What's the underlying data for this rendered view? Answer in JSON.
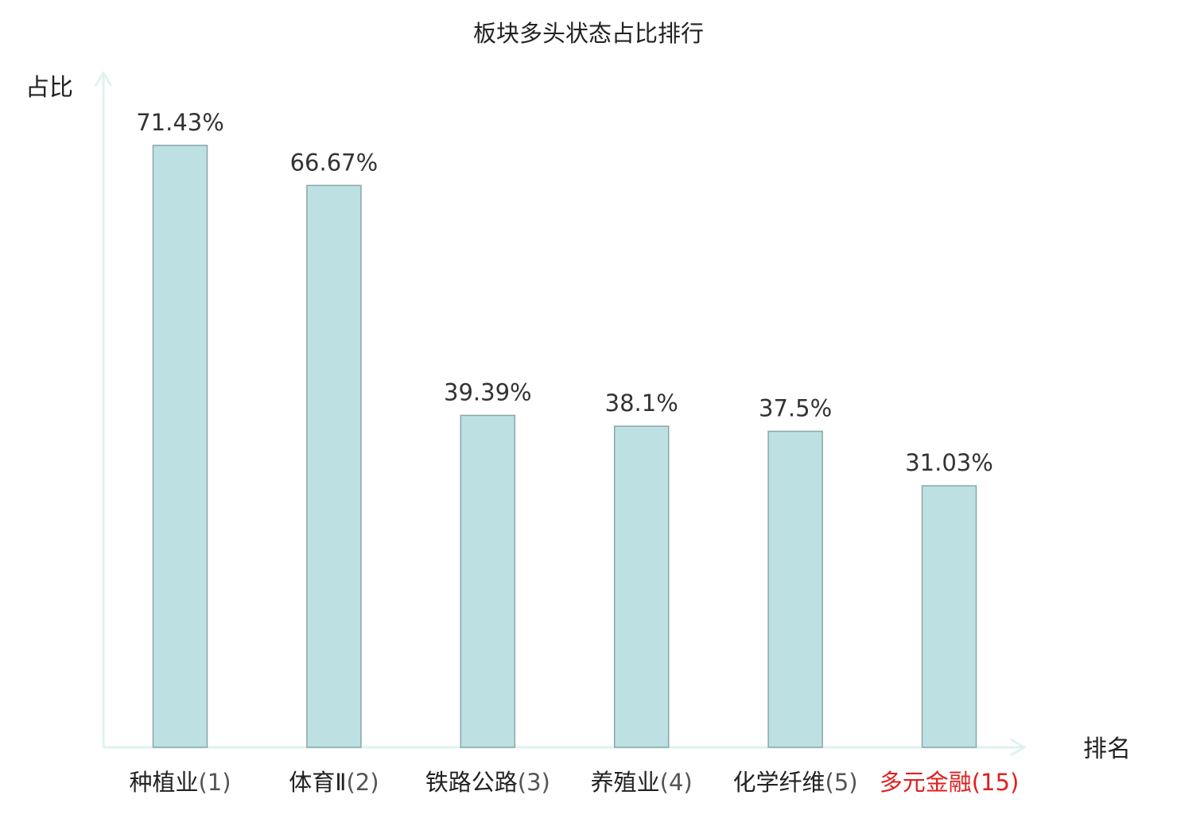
{
  "chart_data": {
    "type": "bar",
    "title": "板块多头状态占比排行",
    "ylabel": "占比",
    "xlabel": "排名",
    "categories": [
      {
        "name": "种植业",
        "rank": "(1)"
      },
      {
        "name": "体育Ⅱ",
        "rank": "(2)"
      },
      {
        "name": "铁路公路",
        "rank": "(3)"
      },
      {
        "name": "养殖业",
        "rank": "(4)"
      },
      {
        "name": "化学纤维",
        "rank": "(5)"
      },
      {
        "name": "多元金融",
        "rank": "(15)"
      }
    ],
    "values": [
      71.43,
      66.67,
      39.39,
      38.1,
      37.5,
      31.03
    ],
    "value_labels": [
      "71.43%",
      "66.67%",
      "39.39%",
      "38.1%",
      "37.5%",
      "31.03%"
    ],
    "highlight_index": 5,
    "ylim": [
      0,
      100
    ],
    "grid": false,
    "colors": {
      "bar_fill": "#bde0e3",
      "bar_stroke": "#8aa6a8",
      "axis": "#dff2ef",
      "text": "#222222",
      "value_text": "#333333",
      "rank_text": "#555555",
      "highlight": "#e02020"
    }
  }
}
